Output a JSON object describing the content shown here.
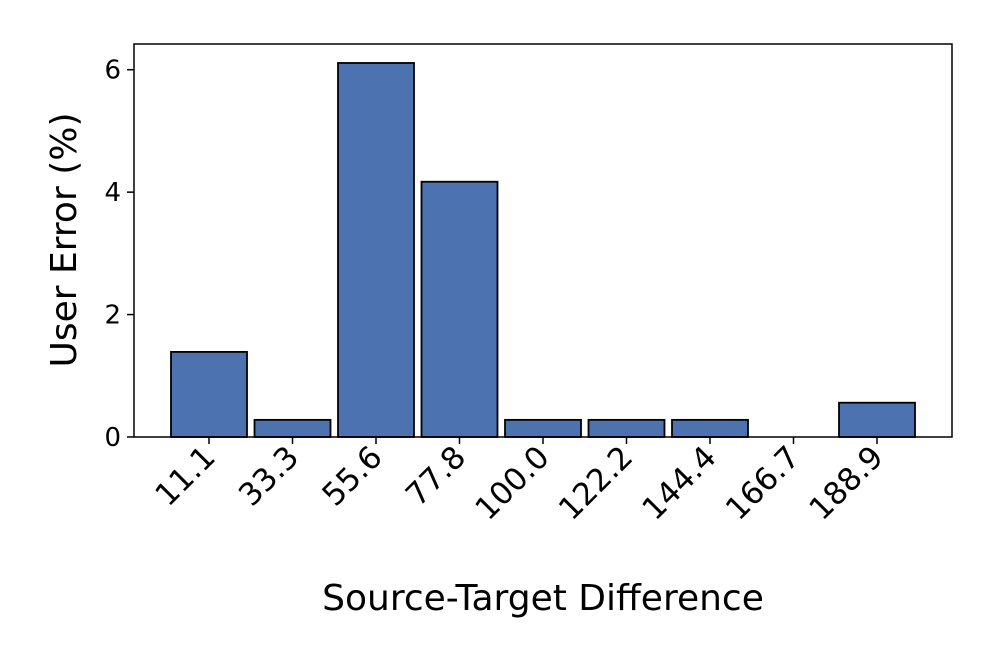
{
  "chart_data": {
    "type": "bar",
    "xlabel": "Source-Target Difference",
    "ylabel": "User Error (%)",
    "categories": [
      "11.1",
      "33.3",
      "55.6",
      "77.8",
      "100.0",
      "122.2",
      "144.4",
      "166.7",
      "188.9"
    ],
    "values": [
      1.39,
      0.28,
      6.11,
      4.17,
      0.28,
      0.28,
      0.28,
      0,
      0.56
    ],
    "color": "#4c72b0",
    "ylim": [
      0,
      6.42
    ],
    "yticks": [
      0,
      2,
      4,
      6
    ]
  }
}
